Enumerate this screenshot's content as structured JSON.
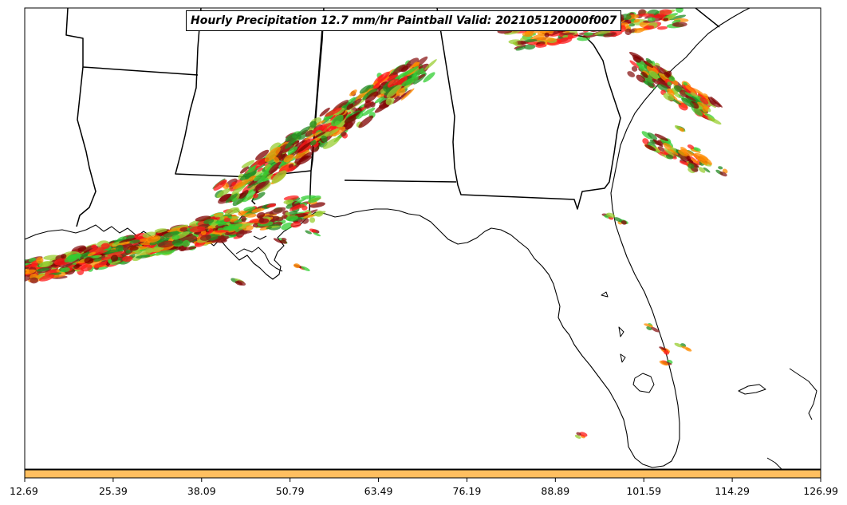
{
  "title": "Hourly Precipitation 12.7 mm/hr Paintball Valid: 202105120000f007",
  "colorbar": {
    "color": "#ffbf60",
    "ticks": [
      "12.69",
      "25.39",
      "38.09",
      "50.79",
      "63.49",
      "76.19",
      "88.89",
      "101.59",
      "114.29",
      "126.99"
    ]
  },
  "paintball_colors": [
    "#ff1a1a",
    "#ff8c00",
    "#32cd32",
    "#8b1a1a",
    "#9acd32",
    "#228b22",
    "#800000"
  ]
}
